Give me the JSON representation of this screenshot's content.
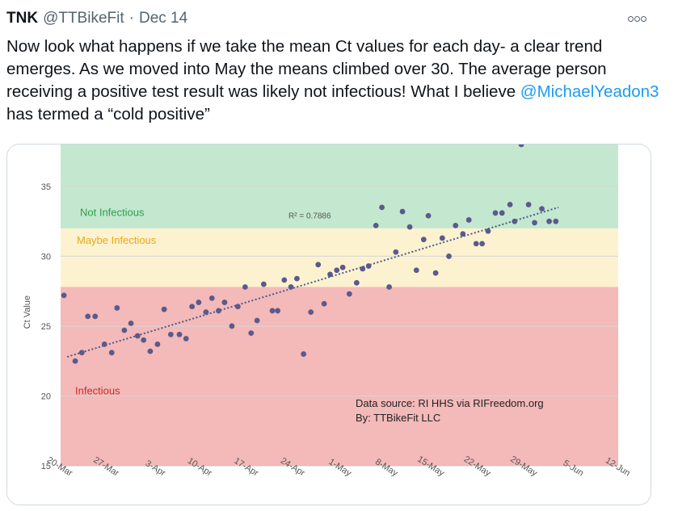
{
  "tweet": {
    "author_name": "TNK",
    "author_handle": "@TTBikeFit",
    "separator": "·",
    "date": "Dec 14",
    "text_before": "Now look what happens if we take the mean Ct values for each day- a clear trend emerges. As we moved into May the means climbed over 30. The average person receiving a positive test result was likely not infectious! What I believe ",
    "mention": "@MichaelYeadon3",
    "text_after": " has termed a “cold positive”",
    "more_icon": "ellipsis-icon"
  },
  "chart_data": {
    "type": "scatter",
    "title": "",
    "xlabel": "",
    "ylabel": "Ct Value",
    "ylim": [
      15,
      38
    ],
    "yticks": [
      15,
      20,
      25,
      30,
      35
    ],
    "x_tick_labels": [
      "20-Mar",
      "27-Mar",
      "3-Apr",
      "10-Apr",
      "17-Apr",
      "24-Apr",
      "1-May",
      "8-May",
      "15-May",
      "22-May",
      "29-May",
      "5-Jun",
      "12-Jun"
    ],
    "x_range_days": [
      0,
      84
    ],
    "zones": [
      {
        "label": "Infectious",
        "from": 15,
        "to": 27.8,
        "color": "#f4b9b9",
        "label_color": "#cc2a2a"
      },
      {
        "label": "Maybe Infectious",
        "from": 27.8,
        "to": 32,
        "color": "#fdf2d0",
        "label_color": "#e6a917"
      },
      {
        "label": "Not Infectious",
        "from": 32,
        "to": 38,
        "color": "#c3e8cf",
        "label_color": "#2f9e4a"
      }
    ],
    "trendline": {
      "label": "R² = 0.7886",
      "x": [
        1,
        75
      ],
      "y": [
        22.8,
        33.5
      ]
    },
    "annotation_lines": [
      "Data source: RI HHS via RIFreedom.org",
      "By: TTBikeFit LLC"
    ],
    "point_color": "#5a5a8c",
    "x": [
      0.5,
      2.2,
      3.2,
      4.1,
      5.2,
      6.6,
      7.7,
      8.5,
      9.6,
      10.6,
      11.6,
      12.5,
      13.5,
      14.6,
      15.6,
      16.6,
      17.9,
      18.9,
      19.8,
      20.8,
      21.9,
      22.8,
      23.8,
      24.7,
      25.8,
      26.7,
      27.8,
      28.7,
      29.6,
      30.6,
      31.9,
      32.7,
      33.7,
      34.7,
      35.6,
      36.6,
      37.7,
      38.8,
      39.7,
      40.6,
      41.6,
      42.5,
      43.5,
      44.6,
      45.5,
      46.4,
      47.5,
      48.4,
      49.5,
      50.5,
      51.5,
      52.6,
      53.6,
      54.7,
      55.4,
      56.5,
      57.5,
      58.5,
      59.5,
      60.6,
      61.5,
      62.6,
      63.5,
      64.4,
      65.5,
      66.5,
      67.7,
      68.4,
      69.4,
      70.5,
      71.4,
      72.5,
      73.6,
      74.6
    ],
    "y": [
      27.2,
      22.5,
      23.1,
      25.7,
      25.7,
      23.7,
      23.1,
      26.3,
      24.7,
      25.2,
      24.3,
      24.0,
      23.2,
      23.7,
      26.2,
      24.4,
      24.4,
      24.1,
      26.4,
      26.7,
      26.0,
      27.0,
      26.1,
      26.7,
      25.0,
      26.4,
      27.8,
      24.5,
      25.4,
      28.0,
      26.1,
      26.1,
      28.3,
      27.8,
      28.4,
      23.0,
      26.0,
      29.4,
      26.6,
      28.7,
      29.0,
      29.2,
      27.3,
      28.1,
      29.1,
      29.3,
      32.2,
      33.5,
      27.8,
      30.3,
      33.2,
      32.1,
      29.0,
      31.2,
      32.9,
      28.8,
      31.3,
      30.0,
      32.2,
      31.6,
      32.6,
      30.9,
      30.9,
      31.8,
      33.1,
      33.1,
      33.7,
      32.5,
      38.0,
      33.7,
      32.4,
      33.4,
      32.5,
      32.5
    ]
  }
}
